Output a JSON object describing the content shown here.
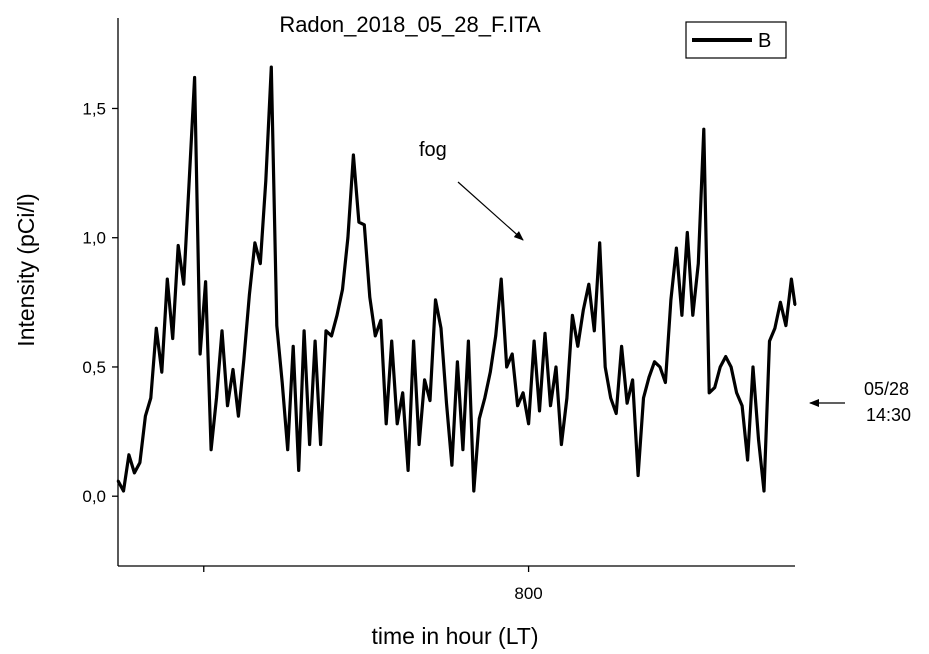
{
  "chart_data": {
    "type": "line",
    "title": "Radon_2018_05_28_F.ITA",
    "xlabel": "time in hour (LT)",
    "ylabel": "Intensity (pCi/l)",
    "xlim": [
      575,
      946
    ],
    "ylim": [
      -0.27,
      1.85
    ],
    "x_ticks": [
      622,
      800
    ],
    "x_tick_labels": [
      "",
      "800"
    ],
    "y_ticks": [
      0.0,
      0.5,
      1.0,
      1.5
    ],
    "y_tick_labels": [
      "0,0",
      "0,5",
      "1,0",
      "1,5"
    ],
    "grid": false,
    "legend_position": "top-right",
    "series": [
      {
        "name": "B",
        "color": "#000000",
        "x": [
          575,
          578,
          581,
          584,
          587,
          590,
          593,
          596,
          599,
          602,
          605,
          608,
          611,
          614,
          617,
          620,
          623,
          626,
          629,
          632,
          635,
          638,
          641,
          644,
          647,
          650,
          653,
          656,
          659,
          662,
          665,
          668,
          671,
          674,
          677,
          680,
          683,
          686,
          689,
          692,
          695,
          698,
          701,
          704,
          707,
          710,
          713,
          716,
          719,
          722,
          725,
          728,
          731,
          734,
          737,
          740,
          743,
          746,
          749,
          752,
          755,
          758,
          761,
          764,
          767,
          770,
          773,
          776,
          779,
          782,
          785,
          788,
          791,
          794,
          797,
          800,
          803,
          806,
          809,
          812,
          815,
          818,
          821,
          824,
          827,
          830,
          833,
          836,
          839,
          842,
          845,
          848,
          851,
          854,
          857,
          860,
          863,
          866,
          869,
          872,
          875,
          878,
          881,
          884,
          887,
          890,
          893,
          896,
          899,
          902,
          905,
          908,
          911,
          914,
          917,
          920,
          923,
          926,
          929,
          932,
          935,
          938,
          941,
          944,
          946
        ],
        "y": [
          0.06,
          0.02,
          0.16,
          0.09,
          0.13,
          0.31,
          0.38,
          0.65,
          0.48,
          0.84,
          0.61,
          0.97,
          0.82,
          1.22,
          1.62,
          0.55,
          0.83,
          0.18,
          0.38,
          0.64,
          0.35,
          0.49,
          0.31,
          0.53,
          0.78,
          0.98,
          0.9,
          1.22,
          1.66,
          0.66,
          0.44,
          0.18,
          0.58,
          0.1,
          0.64,
          0.2,
          0.6,
          0.2,
          0.64,
          0.62,
          0.7,
          0.8,
          1.0,
          1.32,
          1.06,
          1.05,
          0.77,
          0.62,
          0.68,
          0.28,
          0.6,
          0.28,
          0.4,
          0.1,
          0.6,
          0.2,
          0.45,
          0.37,
          0.76,
          0.65,
          0.36,
          0.12,
          0.52,
          0.18,
          0.6,
          0.02,
          0.3,
          0.38,
          0.48,
          0.62,
          0.84,
          0.5,
          0.55,
          0.35,
          0.4,
          0.28,
          0.6,
          0.33,
          0.63,
          0.35,
          0.5,
          0.2,
          0.38,
          0.7,
          0.58,
          0.72,
          0.82,
          0.64,
          0.98,
          0.5,
          0.38,
          0.32,
          0.58,
          0.36,
          0.45,
          0.08,
          0.38,
          0.46,
          0.52,
          0.5,
          0.44,
          0.76,
          0.96,
          0.7,
          1.02,
          0.7,
          0.9,
          1.42,
          0.4,
          0.42,
          0.5,
          0.54,
          0.5,
          0.4,
          0.35,
          0.14,
          0.5,
          0.22,
          0.02,
          0.6,
          0.65,
          0.75,
          0.66,
          0.84,
          0.74
        ]
      }
    ],
    "annotations": [
      {
        "text": "fog",
        "x": 785,
        "y": 0.98
      },
      {
        "text": "05/28",
        "side": "right"
      },
      {
        "text": "14:30",
        "side": "right"
      }
    ]
  }
}
